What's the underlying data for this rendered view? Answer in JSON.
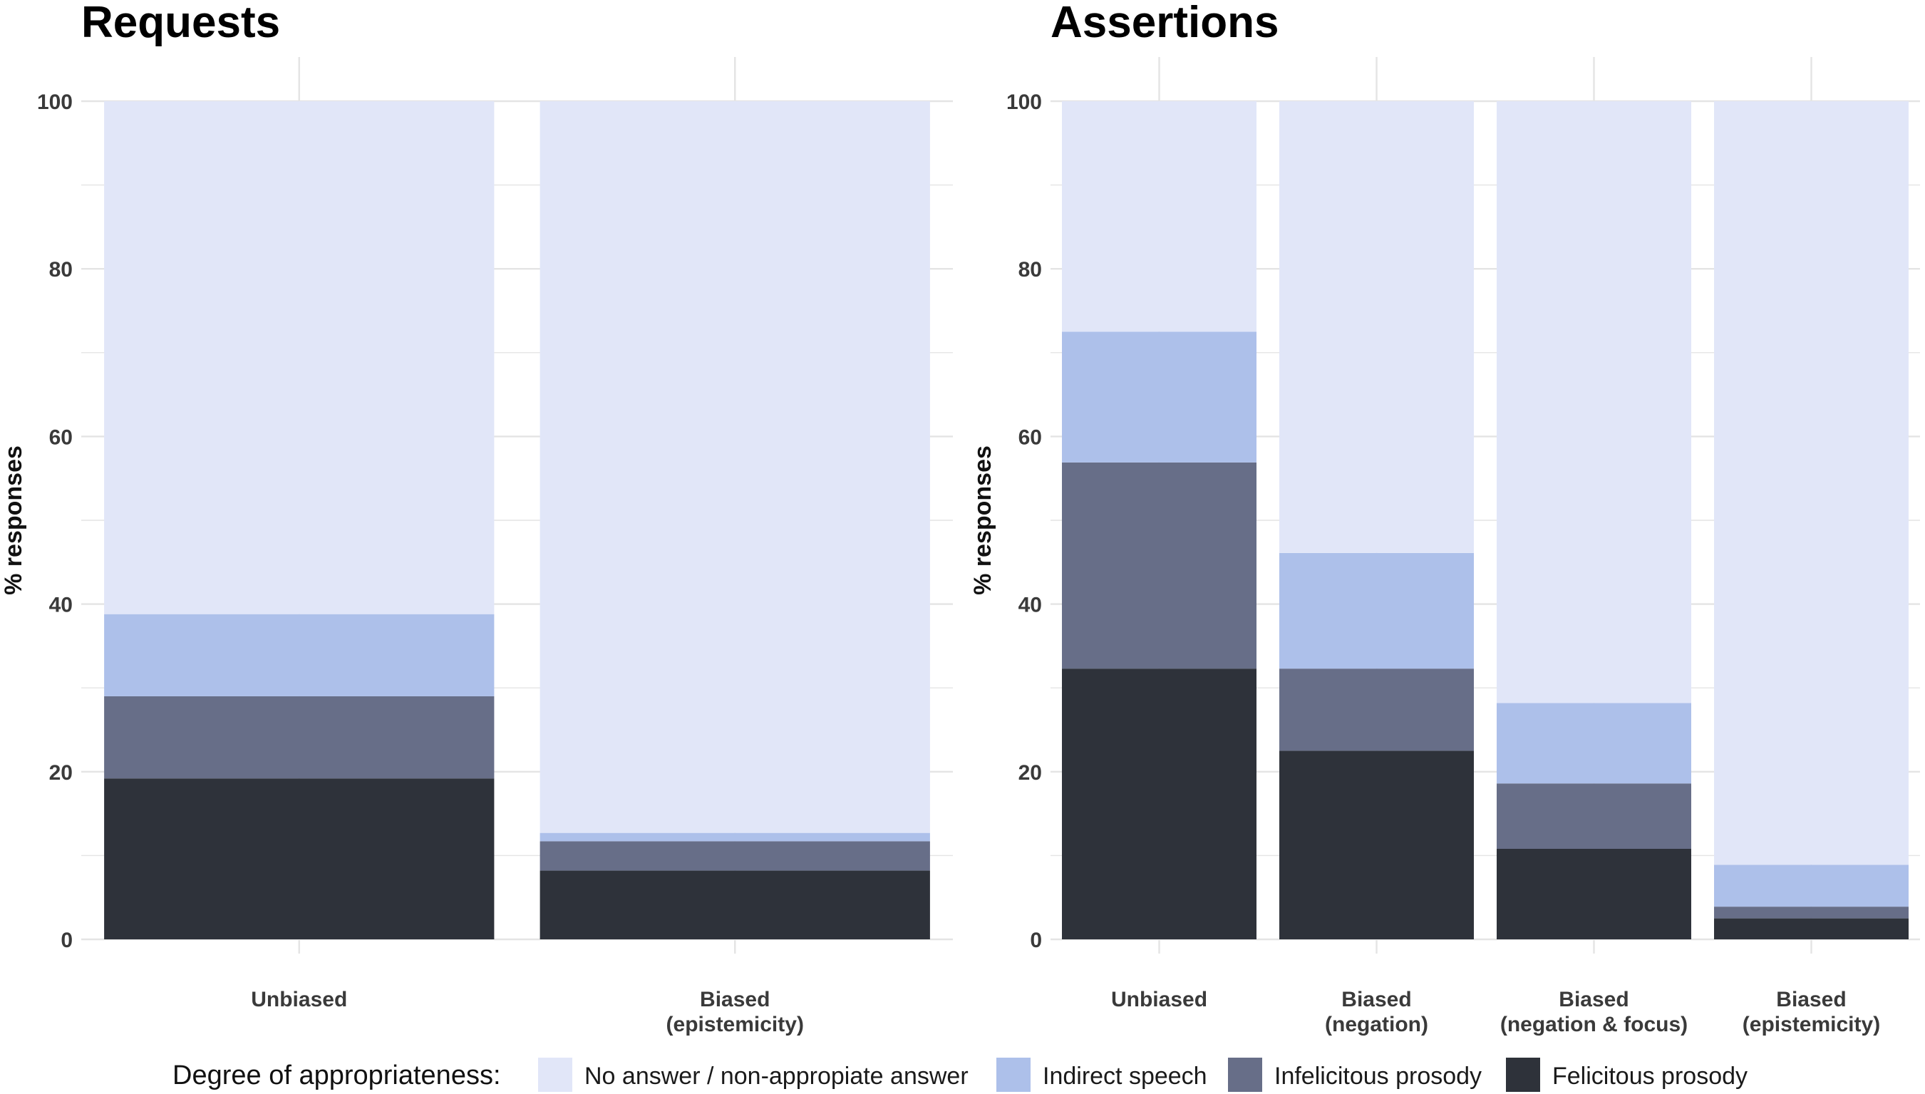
{
  "chart_data": [
    {
      "type": "bar",
      "stacked": true,
      "title": "Requests",
      "ylabel": "% responses",
      "xlabel": "",
      "ylim": [
        0,
        100
      ],
      "yticks": [
        0,
        20,
        40,
        60,
        80,
        100
      ],
      "grid": true,
      "categories": [
        {
          "id": "unbiased",
          "lines": [
            "Unbiased"
          ]
        },
        {
          "id": "biased-epistemicity",
          "lines": [
            "Biased",
            "(epistemicity)"
          ]
        }
      ],
      "series": [
        {
          "name": "Felicitous prosody",
          "values": [
            19.2,
            8.2
          ]
        },
        {
          "name": "Infelicitous prosody",
          "values": [
            9.8,
            3.5
          ]
        },
        {
          "name": "Indirect speech",
          "values": [
            9.8,
            1.0
          ]
        },
        {
          "name": "No answer / non-appropiate answer",
          "values": [
            61.2,
            87.3
          ]
        }
      ]
    },
    {
      "type": "bar",
      "stacked": true,
      "title": "Assertions",
      "ylabel": "% responses",
      "xlabel": "",
      "ylim": [
        0,
        100
      ],
      "yticks": [
        0,
        20,
        40,
        60,
        80,
        100
      ],
      "grid": true,
      "categories": [
        {
          "id": "unbiased",
          "lines": [
            "Unbiased"
          ]
        },
        {
          "id": "biased-negation",
          "lines": [
            "Biased",
            "(negation)"
          ]
        },
        {
          "id": "biased-negation-focus",
          "lines": [
            "Biased",
            "(negation & focus)"
          ]
        },
        {
          "id": "biased-epistemicity",
          "lines": [
            "Biased",
            "(epistemicity)"
          ]
        }
      ],
      "series": [
        {
          "name": "Felicitous prosody",
          "values": [
            32.3,
            22.5,
            10.8,
            2.5
          ]
        },
        {
          "name": "Infelicitous prosody",
          "values": [
            24.6,
            9.8,
            7.8,
            1.4
          ]
        },
        {
          "name": "Indirect speech",
          "values": [
            15.6,
            13.8,
            9.6,
            5.0
          ]
        },
        {
          "name": "No answer / non-appropiate answer",
          "values": [
            27.5,
            53.9,
            71.8,
            91.1
          ]
        }
      ]
    }
  ],
  "legend": {
    "title": "Degree of appropriateness:",
    "position": "bottom",
    "items": [
      {
        "label": "No answer / non-appropiate answer",
        "color": "#e1e6f8"
      },
      {
        "label": "Indirect speech",
        "color": "#adc0ea"
      },
      {
        "label": "Infelicitous prosody",
        "color": "#676e88"
      },
      {
        "label": "Felicitous prosody",
        "color": "#2e323a"
      }
    ]
  },
  "colors": {
    "Felicitous prosody": "#2e323a",
    "Infelicitous prosody": "#676e88",
    "Indirect speech": "#adc0ea",
    "No answer / non-appropiate answer": "#e1e6f8",
    "grid": "#e4e4e4"
  }
}
